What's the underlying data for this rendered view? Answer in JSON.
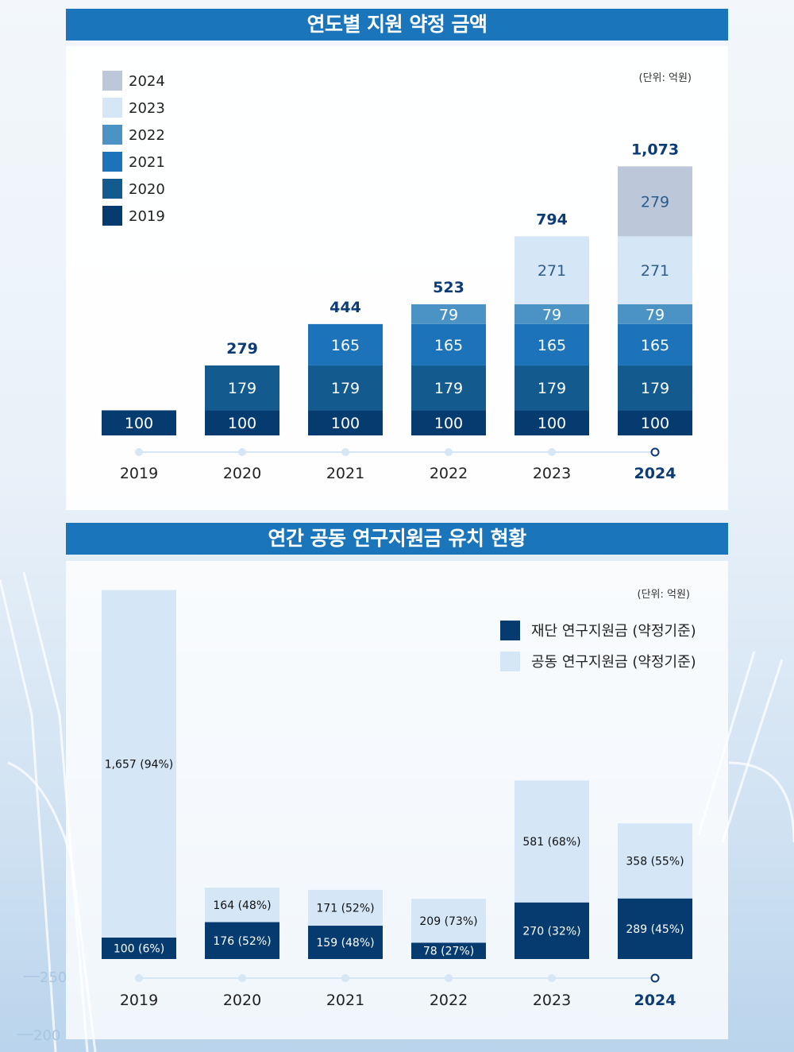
{
  "colors": {
    "title_bg": "#1b75ba",
    "y2024": "#bcc7d9",
    "y2023": "#d5e6f7",
    "y2022": "#4a93c4",
    "y2021": "#1c73ba",
    "y2020": "#135a8f",
    "y2019": "#063b70",
    "total_label": "#0b3c75",
    "axis_line": "#d6e6f4",
    "axis_dot": "#d6e6f4",
    "foundation": "#063b70",
    "joint": "#d5e6f7"
  },
  "chart_data": [
    {
      "type": "bar",
      "title": "연도별 지원 약정 금액",
      "unit_label": "(단위: 억원)",
      "stacked": true,
      "categories": [
        "2019",
        "2020",
        "2021",
        "2022",
        "2023",
        "2024"
      ],
      "highlight_category": "2024",
      "legend_position": "top-left",
      "series": [
        {
          "name": "2019",
          "color": "#063b70",
          "values": [
            100,
            100,
            100,
            100,
            100,
            100
          ]
        },
        {
          "name": "2020",
          "color": "#135a8f",
          "values": [
            null,
            179,
            179,
            179,
            179,
            179
          ]
        },
        {
          "name": "2021",
          "color": "#1c73ba",
          "values": [
            null,
            null,
            165,
            165,
            165,
            165
          ]
        },
        {
          "name": "2022",
          "color": "#4a93c4",
          "values": [
            null,
            null,
            null,
            79,
            79,
            79
          ]
        },
        {
          "name": "2023",
          "color": "#d5e6f7",
          "values": [
            null,
            null,
            null,
            null,
            271,
            271
          ]
        },
        {
          "name": "2024",
          "color": "#bcc7d9",
          "values": [
            null,
            null,
            null,
            null,
            null,
            279
          ]
        }
      ],
      "legend_order": [
        "2024",
        "2023",
        "2022",
        "2021",
        "2020",
        "2019"
      ],
      "totals": [
        null,
        "279",
        "444",
        "523",
        "794",
        "1,073"
      ],
      "total_values": [
        100,
        279,
        444,
        523,
        794,
        1073
      ]
    },
    {
      "type": "bar",
      "title": "연간 공동 연구지원금 유치 현황",
      "unit_label": "(단위: 억원)",
      "stacked": true,
      "categories": [
        "2019",
        "2020",
        "2021",
        "2022",
        "2023",
        "2024"
      ],
      "highlight_category": "2024",
      "legend_position": "top-right",
      "series": [
        {
          "name": "재단 연구지원금 (약정기준)",
          "color": "#063b70",
          "values": [
            100,
            176,
            159,
            78,
            270,
            289
          ],
          "labels": [
            "100 (6%)",
            "176 (52%)",
            "159 (48%)",
            "78 (27%)",
            "270 (32%)",
            "289 (45%)"
          ]
        },
        {
          "name": "공동 연구지원금 (약정기준)",
          "color": "#d5e6f7",
          "values": [
            1657,
            164,
            171,
            209,
            581,
            358
          ],
          "labels": [
            "1,657 (94%)",
            "164 (48%)",
            "171 (52%)",
            "209 (73%)",
            "581 (68%)",
            "358 (55%)"
          ]
        }
      ]
    }
  ]
}
